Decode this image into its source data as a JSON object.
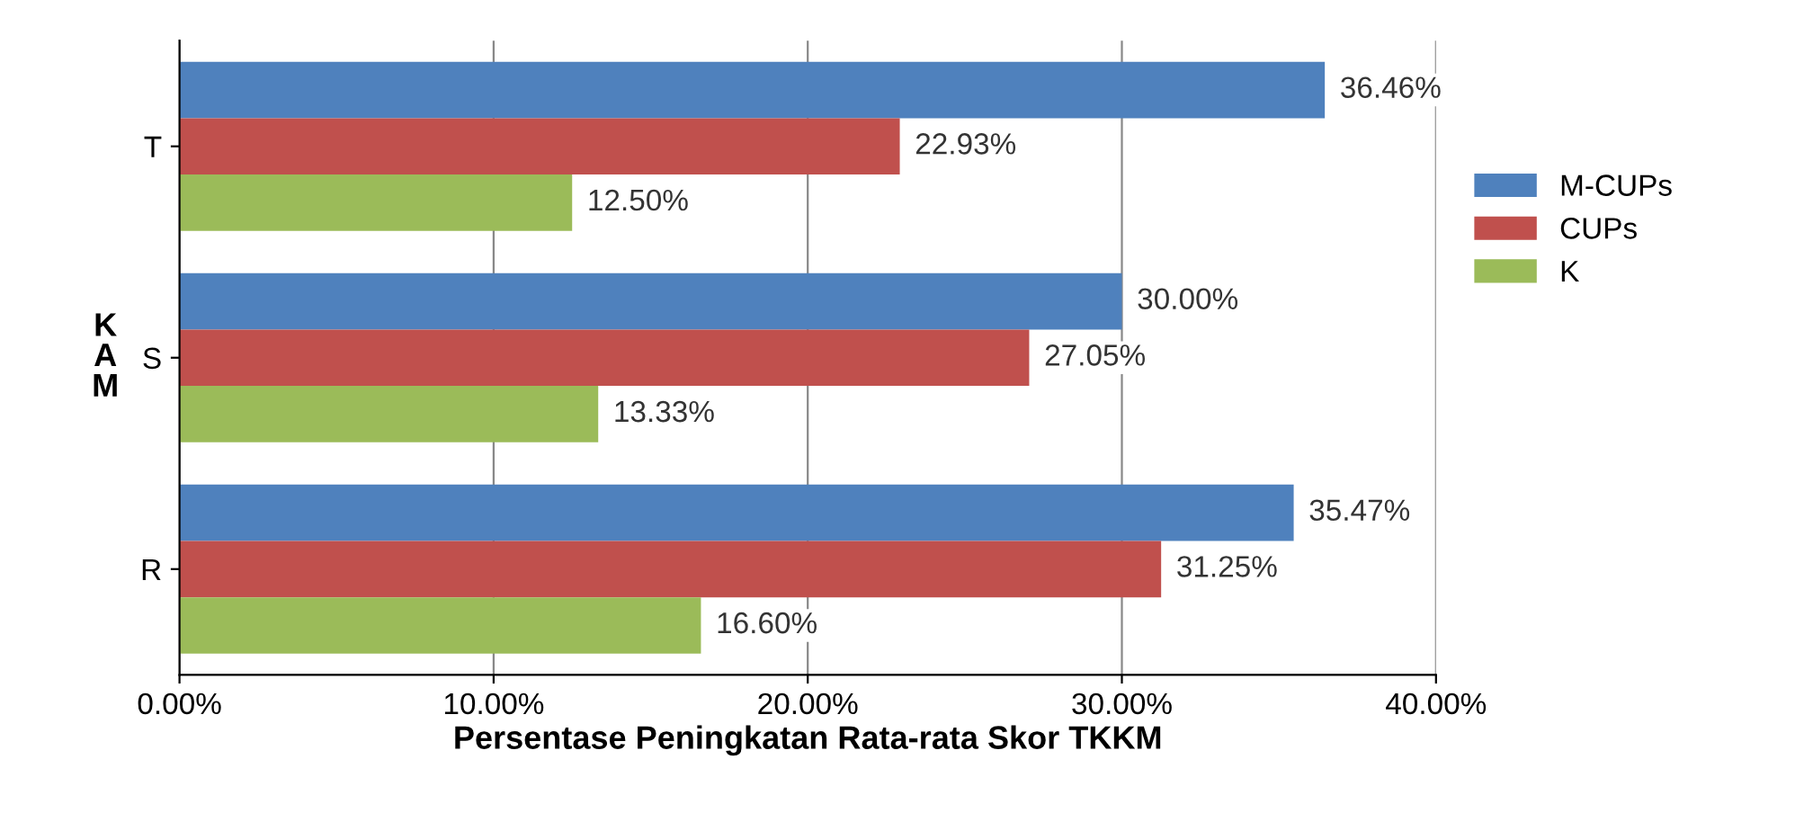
{
  "chart_data": {
    "type": "bar",
    "orientation": "horizontal",
    "xlabel": "Persentase Peningkatan Rata-rata Skor TKKM",
    "ylabel": "KAM",
    "categories": [
      "T",
      "S",
      "R"
    ],
    "series": [
      {
        "name": "M-CUPs",
        "color": "#4f81bd",
        "values": [
          36.46,
          30.0,
          35.47
        ],
        "value_labels": [
          "36.46%",
          "30.00%",
          "35.47%"
        ]
      },
      {
        "name": "CUPs",
        "color": "#c0504d",
        "values": [
          22.93,
          27.05,
          31.25
        ],
        "value_labels": [
          "22.93%",
          "27.05%",
          "31.25%"
        ]
      },
      {
        "name": "K",
        "color": "#9bbb59",
        "values": [
          12.5,
          13.33,
          16.6
        ],
        "value_labels": [
          "12.50%",
          "13.33%",
          "16.60%"
        ]
      }
    ],
    "xlim": [
      0,
      40
    ],
    "xticks": [
      {
        "value": 0,
        "label": "0.00%"
      },
      {
        "value": 10,
        "label": "10.00%"
      },
      {
        "value": 20,
        "label": "20.00%"
      },
      {
        "value": 30,
        "label": "30.00%"
      },
      {
        "value": 40,
        "label": "40.00%"
      }
    ],
    "grid": "x",
    "legend": "right"
  }
}
